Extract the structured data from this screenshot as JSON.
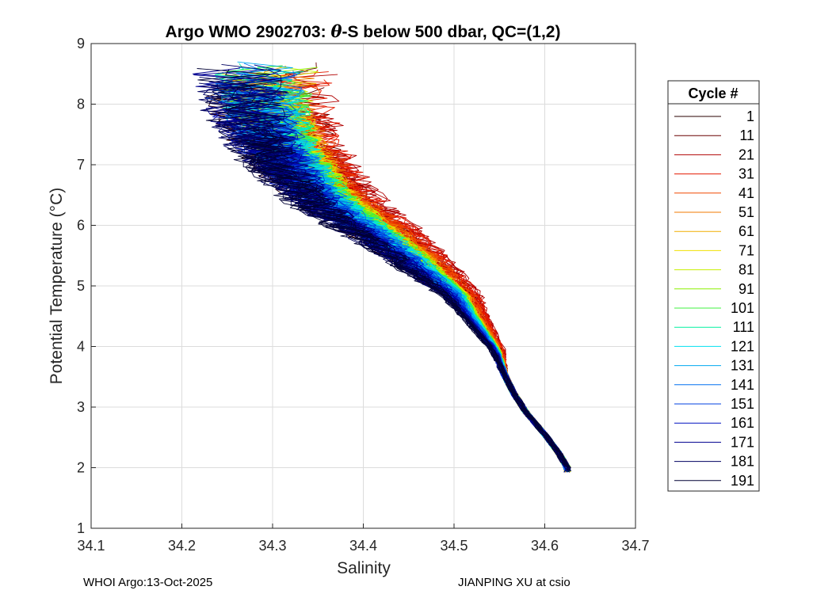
{
  "chart_data": {
    "type": "line",
    "title_prefix": "Argo WMO 2902703: ",
    "title_symbol": "θ",
    "title_suffix": "-S below 500 dbar,  QC=(1,2)",
    "xlabel": "Salinity",
    "ylabel": "Potential Temperature (°C)",
    "xlim": [
      34.1,
      34.7
    ],
    "ylim": [
      1,
      9
    ],
    "xticks": [
      "34.1",
      "34.2",
      "34.3",
      "34.4",
      "34.5",
      "34.6",
      "34.7"
    ],
    "yticks": [
      "1",
      "2",
      "3",
      "4",
      "5",
      "6",
      "7",
      "8",
      "9"
    ],
    "grid": true,
    "legend_title": "Cycle #",
    "legend_position": "outside-right",
    "mean_profile": {
      "salinity": [
        34.625,
        34.615,
        34.6,
        34.58,
        34.565,
        34.555,
        34.545,
        34.525,
        34.5,
        34.47,
        34.44,
        34.4,
        34.36,
        34.33,
        34.3,
        34.28
      ],
      "theta": [
        2.0,
        2.25,
        2.55,
        2.9,
        3.25,
        3.55,
        3.95,
        4.35,
        4.85,
        5.2,
        5.55,
        5.95,
        6.35,
        6.8,
        7.35,
        8.0
      ]
    },
    "series": [
      {
        "name": "1",
        "color": "#2a0000",
        "offset": -0.012
      },
      {
        "name": "11",
        "color": "#6a0000",
        "offset": 0.03
      },
      {
        "name": "21",
        "color": "#b00000",
        "offset": 0.045
      },
      {
        "name": "31",
        "color": "#e41a00",
        "offset": 0.04
      },
      {
        "name": "41",
        "color": "#f04800",
        "offset": 0.03
      },
      {
        "name": "51",
        "color": "#f07a00",
        "offset": 0.022
      },
      {
        "name": "61",
        "color": "#f0ae00",
        "offset": 0.018
      },
      {
        "name": "71",
        "color": "#f0e000",
        "offset": 0.015
      },
      {
        "name": "81",
        "color": "#c8f000",
        "offset": 0.016
      },
      {
        "name": "91",
        "color": "#8cf000",
        "offset": 0.014
      },
      {
        "name": "101",
        "color": "#40f040",
        "offset": 0.012
      },
      {
        "name": "111",
        "color": "#00f0a0",
        "offset": 0.01
      },
      {
        "name": "121",
        "color": "#00e0f0",
        "offset": 0.008
      },
      {
        "name": "131",
        "color": "#00a8f0",
        "offset": 0.005
      },
      {
        "name": "141",
        "color": "#0070f0",
        "offset": 0.002
      },
      {
        "name": "151",
        "color": "#0040e0",
        "offset": -0.003
      },
      {
        "name": "161",
        "color": "#0010c0",
        "offset": -0.008
      },
      {
        "name": "171",
        "color": "#000090",
        "offset": -0.012
      },
      {
        "name": "181",
        "color": "#000060",
        "offset": -0.016
      },
      {
        "name": "191",
        "color": "#000035",
        "offset": -0.02
      }
    ]
  },
  "footer": {
    "left": "WHOI Argo:13-Oct-2025",
    "right": "JIANPING XU at csio"
  }
}
